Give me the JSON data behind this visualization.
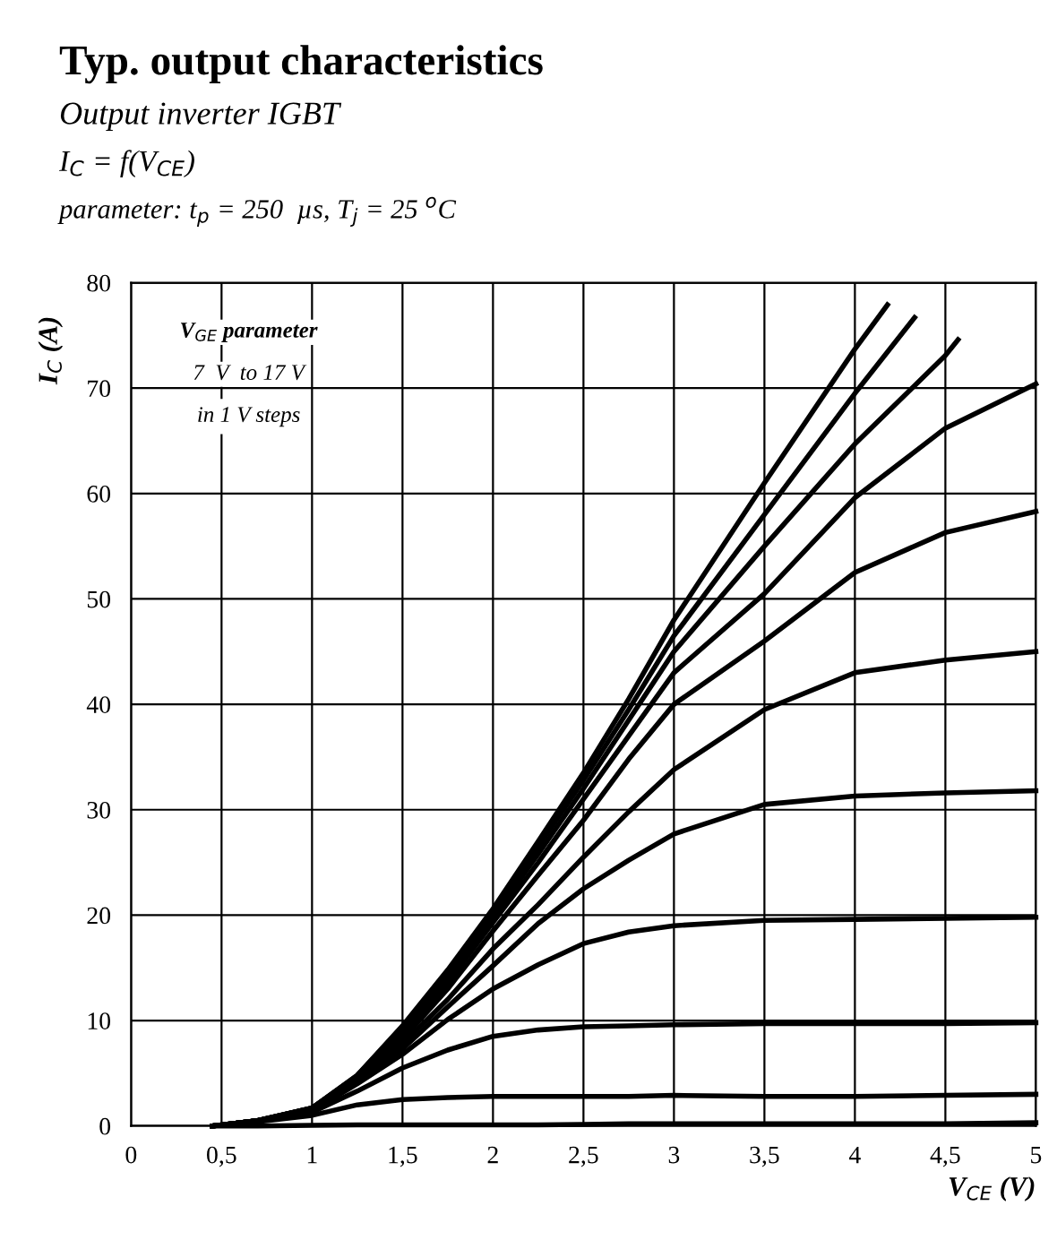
{
  "chart_data": {
    "type": "line",
    "title": "Typ. output characteristics",
    "subtitle": "Output inverter IGBT",
    "annotations": [
      "I$_{C}$ = f(V$_{CE}$)",
      "parameter: t$_{p}$ = 250  µs, T$_{j}$ = 25 $^{o}$C",
      "V$_{GE}$ parameter",
      "7  V  to 17 V",
      "in 1 V steps"
    ],
    "xlabel": "V$_{CE}$ (V)",
    "ylabel": "I$_{C}$ (A)",
    "x": [
      0.45,
      0.7,
      1,
      1.25,
      1.5,
      1.75,
      2,
      2.25,
      2.5,
      2.75,
      3,
      3.5,
      4,
      4.5,
      5
    ],
    "series": [
      {
        "color": "#000000",
        "values": [
          0,
          0,
          0.05,
          0.1,
          0.1,
          0.1,
          0.1,
          0.1,
          0.15,
          0.2,
          0.2,
          0.2,
          0.2,
          0.2,
          0.3
        ]
      },
      {
        "color": "#000000",
        "values": [
          0,
          0.4,
          1.0,
          2.0,
          2.5,
          2.7,
          2.8,
          2.8,
          2.8,
          2.8,
          2.9,
          2.8,
          2.8,
          2.9,
          3.0
        ]
      },
      {
        "color": "#000000",
        "values": [
          0,
          0.5,
          1.3,
          3.3,
          5.5,
          7.2,
          8.5,
          9.1,
          9.4,
          9.5,
          9.6,
          9.7,
          9.7,
          9.7,
          9.8
        ]
      },
      {
        "color": "#000000",
        "values": [
          0,
          0.5,
          1.4,
          4,
          6.8,
          10.1,
          13,
          15.3,
          17.3,
          18.4,
          19,
          19.5,
          19.6,
          19.7,
          19.8
        ]
      },
      {
        "color": "#000000",
        "values": [
          0,
          0.5,
          1.5,
          4.2,
          7.3,
          11.3,
          15.2,
          19.2,
          22.5,
          25.2,
          27.7,
          30.5,
          31.3,
          31.6,
          31.8
        ]
      },
      {
        "color": "#000000",
        "values": [
          0,
          0.5,
          1.6,
          4.4,
          7.8,
          12,
          16.8,
          21,
          25.5,
          29.8,
          33.8,
          39.5,
          43,
          44.2,
          45
        ]
      },
      {
        "color": "#000000",
        "values": [
          0,
          0.5,
          1.6,
          4.5,
          8.2,
          13,
          18.5,
          23.8,
          29,
          34.8,
          40,
          46,
          52.5,
          56.3,
          58.3
        ]
      },
      {
        "color": "#000000",
        "values": [
          0,
          0.5,
          1.7,
          4.6,
          8.6,
          13.6,
          19.3,
          25,
          31,
          37,
          43,
          50.5,
          59.6,
          66.2,
          70.4
        ]
      },
      {
        "color": "#000000",
        "x": [
          0.45,
          0.7,
          1,
          1.25,
          1.5,
          1.75,
          2,
          2.25,
          2.5,
          2.75,
          3,
          3.5,
          4,
          4.5,
          4.57
        ],
        "values": [
          0,
          0.5,
          1.7,
          4.7,
          9,
          14.2,
          19.8,
          25.8,
          32,
          38.5,
          45,
          55,
          64.7,
          73.1,
          74.6
        ]
      },
      {
        "color": "#000000",
        "x": [
          0.45,
          0.7,
          1,
          1.25,
          1.5,
          1.75,
          2,
          2.25,
          2.5,
          2.75,
          3,
          3.5,
          4,
          4.33
        ],
        "values": [
          0,
          0.5,
          1.7,
          4.8,
          9.3,
          14.5,
          20.2,
          26.5,
          32.8,
          39.5,
          46.5,
          58,
          69.5,
          76.7
        ]
      },
      {
        "color": "#000000",
        "x": [
          0.45,
          0.7,
          1,
          1.25,
          1.5,
          1.75,
          2,
          2.25,
          2.5,
          2.75,
          3,
          3.5,
          4,
          4.18
        ],
        "values": [
          0,
          0.5,
          1.7,
          4.8,
          9.5,
          14.8,
          20.6,
          27,
          33.5,
          40.5,
          48,
          61,
          73.7,
          77.9
        ]
      }
    ],
    "xlim": [
      0,
      5
    ],
    "xticks": [
      0,
      {
        "value": 0.5,
        "label": "0,5"
      },
      1,
      {
        "value": 1.5,
        "label": "1,5"
      },
      2,
      {
        "value": 2.5,
        "label": "2,5"
      },
      3,
      {
        "value": 3.5,
        "label": "3,5"
      },
      4,
      {
        "value": 4.5,
        "label": "4,5"
      },
      5
    ],
    "ylim": [
      0,
      80
    ],
    "yticks": [
      0,
      10,
      20,
      30,
      40,
      50,
      60,
      70,
      80
    ],
    "grid": true,
    "legend": false,
    "marker": "none",
    "line_style": "solid"
  }
}
